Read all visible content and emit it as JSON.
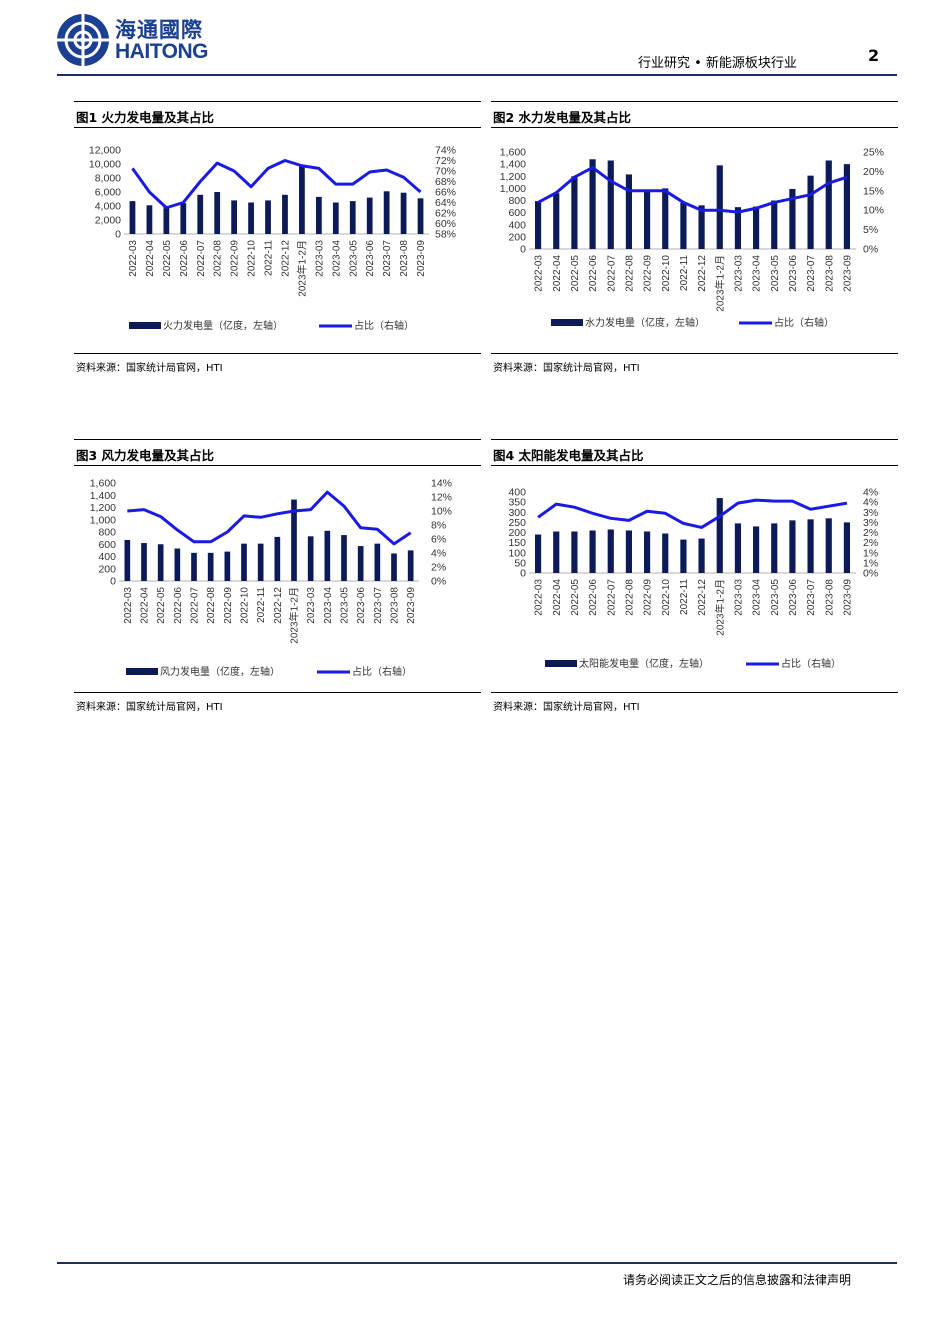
{
  "header": {
    "logo_cn": "海通國際",
    "logo_en": "HAITONG",
    "title": "行业研究 • 新能源板块行业",
    "page_number": "2"
  },
  "footer": {
    "text": "请务必阅读正文之后的信息披露和法律声明"
  },
  "colors": {
    "bar": "#0c1a58",
    "line": "#1a1ae6",
    "rule": "#1b2a6b"
  },
  "chart_data": [
    {
      "type": "bar",
      "title": "图1   火力发电量及其占比",
      "source": "资料来源：国家统计局官网，HTI",
      "categories": [
        "2022-03",
        "2022-04",
        "2022-05",
        "2022-06",
        "2022-07",
        "2022-08",
        "2022-09",
        "2022-10",
        "2022-11",
        "2022-12",
        "2023年1-2月",
        "2023-03",
        "2023-04",
        "2023-05",
        "2023-06",
        "2023-07",
        "2023-08",
        "2023-09"
      ],
      "left_axis": {
        "ticks": [
          "0",
          "2,000",
          "4,000",
          "6,000",
          "8,000",
          "10,000",
          "12,000"
        ],
        "min": 0,
        "max": 12000
      },
      "right_axis": {
        "ticks": [
          "58%",
          "60%",
          "62%",
          "64%",
          "66%",
          "68%",
          "70%",
          "72%",
          "74%"
        ],
        "min": 58,
        "max": 74
      },
      "series": [
        {
          "name": "火力发电量（亿度，左轴）",
          "type": "bar",
          "axis": "left",
          "values": [
            4700,
            4100,
            4000,
            4400,
            5600,
            6000,
            4800,
            4500,
            4800,
            5600,
            9800,
            5300,
            4500,
            4700,
            5200,
            6100,
            5900,
            5100
          ]
        },
        {
          "name": "占比（右轴）",
          "type": "line",
          "axis": "right",
          "values": [
            70.5,
            66,
            63,
            64,
            68,
            71.5,
            70,
            67,
            70.5,
            72,
            71,
            70.5,
            67.5,
            67.5,
            69.8,
            70.2,
            68.8,
            66
          ]
        }
      ]
    },
    {
      "type": "bar",
      "title": "图2   水力发电量及其占比",
      "source": "资料来源：国家统计局官网，HTI",
      "categories": [
        "2022-03",
        "2022-04",
        "2022-05",
        "2022-06",
        "2022-07",
        "2022-08",
        "2022-09",
        "2022-10",
        "2022-11",
        "2022-12",
        "2023年1-2月",
        "2023-03",
        "2023-04",
        "2023-05",
        "2023-06",
        "2023-07",
        "2023-08",
        "2023-09"
      ],
      "left_axis": {
        "ticks": [
          "0",
          "200",
          "400",
          "600",
          "800",
          "1,000",
          "1,200",
          "1,400",
          "1,600"
        ],
        "min": 0,
        "max": 1600
      },
      "right_axis": {
        "ticks": [
          "0%",
          "5%",
          "10%",
          "15%",
          "20%",
          "25%"
        ],
        "min": 0,
        "max": 25
      },
      "series": [
        {
          "name": "水力发电量（亿度，左轴）",
          "type": "bar",
          "axis": "left",
          "values": [
            790,
            920,
            1200,
            1480,
            1460,
            1230,
            980,
            1000,
            760,
            720,
            1380,
            690,
            700,
            800,
            990,
            1210,
            1460,
            1400
          ]
        },
        {
          "name": "占比（右轴）",
          "type": "line",
          "axis": "right",
          "values": [
            12,
            14.5,
            18.5,
            21,
            17.5,
            15,
            15,
            15,
            12,
            10,
            10,
            9.5,
            10.5,
            12,
            13,
            14,
            17,
            18.5
          ]
        }
      ]
    },
    {
      "type": "bar",
      "title": "图3   风力发电量及其占比",
      "source": "资料来源：国家统计局官网，HTI",
      "categories": [
        "2022-03",
        "2022-04",
        "2022-05",
        "2022-06",
        "2022-07",
        "2022-08",
        "2022-09",
        "2022-10",
        "2022-11",
        "2022-12",
        "2023年1-2月",
        "2023-03",
        "2023-04",
        "2023-05",
        "2023-06",
        "2023-07",
        "2023-08",
        "2023-09"
      ],
      "left_axis": {
        "ticks": [
          "0",
          "200",
          "400",
          "600",
          "800",
          "1,000",
          "1,200",
          "1,400",
          "1,600"
        ],
        "min": 0,
        "max": 1600
      },
      "right_axis": {
        "ticks": [
          "0%",
          "2%",
          "4%",
          "6%",
          "8%",
          "10%",
          "12%",
          "14%"
        ],
        "min": 0,
        "max": 14
      },
      "series": [
        {
          "name": "风力发电量（亿度，左轴）",
          "type": "bar",
          "axis": "left",
          "values": [
            670,
            620,
            600,
            530,
            460,
            460,
            480,
            610,
            610,
            720,
            1330,
            730,
            820,
            750,
            570,
            610,
            450,
            500
          ]
        },
        {
          "name": "占比（右轴）",
          "type": "line",
          "axis": "right",
          "values": [
            10,
            10.2,
            9.2,
            7.3,
            5.6,
            5.6,
            7,
            9.3,
            9.1,
            9.6,
            10,
            10.2,
            12.7,
            10.7,
            7.6,
            7.4,
            5.3,
            6.9
          ]
        }
      ]
    },
    {
      "type": "bar",
      "title": "图4   太阳能发电量及其占比",
      "source": "资料来源：国家统计局官网，HTI",
      "categories": [
        "2022-03",
        "2022-04",
        "2022-05",
        "2022-06",
        "2022-07",
        "2022-08",
        "2022-09",
        "2022-10",
        "2022-11",
        "2022-12",
        "2023年1-2月",
        "2023-03",
        "2023-04",
        "2023-05",
        "2023-06",
        "2023-07",
        "2023-08",
        "2023-09"
      ],
      "left_axis": {
        "ticks": [
          "0",
          "50",
          "100",
          "150",
          "200",
          "250",
          "300",
          "350",
          "400"
        ],
        "min": 0,
        "max": 400
      },
      "right_axis": {
        "ticks": [
          "0%",
          "1%",
          "1%",
          "2%",
          "2%",
          "3%",
          "3%",
          "4%",
          "4%"
        ],
        "min": 0,
        "max": 4
      },
      "series": [
        {
          "name": "太阳能发电量（亿度，左轴）",
          "type": "bar",
          "axis": "left",
          "values": [
            190,
            205,
            205,
            210,
            215,
            210,
            205,
            195,
            165,
            170,
            370,
            245,
            230,
            245,
            260,
            265,
            270,
            250
          ]
        },
        {
          "name": "占比（右轴）",
          "type": "line",
          "axis": "right",
          "values": [
            2.75,
            3.4,
            3.25,
            2.95,
            2.7,
            2.6,
            3.05,
            2.95,
            2.45,
            2.25,
            2.8,
            3.45,
            3.6,
            3.55,
            3.55,
            3.15,
            3.3,
            3.45
          ]
        }
      ]
    }
  ]
}
